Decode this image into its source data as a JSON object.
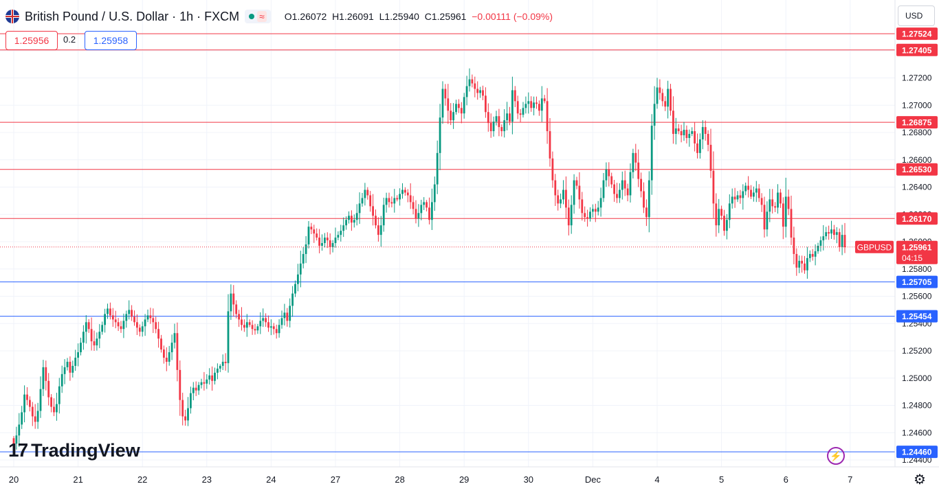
{
  "header": {
    "title": "British Pound / U.S. Dollar · 1h · FXCM",
    "open": "O1.26072",
    "high": "H1.26091",
    "low": "L1.25940",
    "close": "C1.25961",
    "change": "−0.00111 (−0.09%)"
  },
  "quote": {
    "sell": "1.25956",
    "spread": "0.2",
    "buy": "1.25958"
  },
  "currency": "USD",
  "logo_text": "TradingView",
  "colors": {
    "up": "#089981",
    "down": "#f23645",
    "resistance": "#f23645",
    "support": "#2962ff",
    "text": "#131722"
  },
  "chart_data": {
    "type": "candlestick",
    "symbol": "GBPUSD",
    "ylim": [
      1.2435,
      1.2757
    ],
    "y_ticks": [
      "1.24400",
      "1.24600",
      "1.24800",
      "1.25000",
      "1.25200",
      "1.25400",
      "1.25600",
      "1.25800",
      "1.26000",
      "1.26200",
      "1.26400",
      "1.26600",
      "1.26800",
      "1.27000",
      "1.27200",
      "1.27400"
    ],
    "x_ticks": [
      {
        "label": "20",
        "bar": 0
      },
      {
        "label": "21",
        "bar": 24
      },
      {
        "label": "22",
        "bar": 48
      },
      {
        "label": "23",
        "bar": 72
      },
      {
        "label": "24",
        "bar": 96
      },
      {
        "label": "27",
        "bar": 120
      },
      {
        "label": "28",
        "bar": 144
      },
      {
        "label": "29",
        "bar": 168
      },
      {
        "label": "30",
        "bar": 192
      },
      {
        "label": "Dec",
        "bar": 216
      },
      {
        "label": "4",
        "bar": 240
      },
      {
        "label": "5",
        "bar": 264
      },
      {
        "label": "6",
        "bar": 288
      },
      {
        "label": "7",
        "bar": 312
      }
    ],
    "horizontal_levels": [
      {
        "value": 1.27524,
        "label": "1.27524",
        "kind": "resistance"
      },
      {
        "value": 1.27405,
        "label": "1.27405",
        "kind": "resistance"
      },
      {
        "value": 1.26875,
        "label": "1.26875",
        "kind": "resistance"
      },
      {
        "value": 1.2653,
        "label": "1.26530",
        "kind": "resistance"
      },
      {
        "value": 1.2617,
        "label": "1.26170",
        "kind": "resistance"
      },
      {
        "value": 1.25705,
        "label": "1.25705",
        "kind": "support"
      },
      {
        "value": 1.25454,
        "label": "1.25454",
        "kind": "support"
      },
      {
        "value": 1.2446,
        "label": "1.24460",
        "kind": "support"
      }
    ],
    "current_price": {
      "value": 1.25961,
      "label": "1.25961",
      "countdown": "04:15",
      "symbol_label": "GBPUSD"
    },
    "closes": [
      1.2452,
      1.2458,
      1.2466,
      1.2475,
      1.2488,
      1.2484,
      1.2479,
      1.2472,
      1.2468,
      1.2476,
      1.2492,
      1.2508,
      1.2498,
      1.2486,
      1.2479,
      1.2475,
      1.2481,
      1.2494,
      1.2503,
      1.2508,
      1.2512,
      1.2504,
      1.2509,
      1.2515,
      1.2519,
      1.2526,
      1.2534,
      1.2541,
      1.2536,
      1.2527,
      1.2524,
      1.2529,
      1.2534,
      1.2539,
      1.2547,
      1.2551,
      1.2546,
      1.2543,
      1.2541,
      1.2538,
      1.2536,
      1.2542,
      1.2547,
      1.255,
      1.2545,
      1.2541,
      1.2537,
      1.2534,
      1.2538,
      1.2543,
      1.2546,
      1.2544,
      1.2541,
      1.2536,
      1.2529,
      1.2521,
      1.2515,
      1.2512,
      1.2519,
      1.2526,
      1.2533,
      1.2506,
      1.2484,
      1.2472,
      1.2469,
      1.2478,
      1.2489,
      1.2493,
      1.2491,
      1.2495,
      1.2497,
      1.2496,
      1.2499,
      1.2502,
      1.2498,
      1.2504,
      1.2507,
      1.2509,
      1.2512,
      1.2511,
      1.2549,
      1.2562,
      1.2554,
      1.2547,
      1.2543,
      1.2539,
      1.2537,
      1.2541,
      1.2539,
      1.2536,
      1.2535,
      1.2538,
      1.2542,
      1.2544,
      1.2541,
      1.2537,
      1.2538,
      1.2536,
      1.2533,
      1.2539,
      1.2544,
      1.2548,
      1.2542,
      1.2553,
      1.2562,
      1.2569,
      1.2576,
      1.2584,
      1.2591,
      1.2598,
      1.2611,
      1.2609,
      1.2606,
      1.2603,
      1.2597,
      1.2599,
      1.2603,
      1.2601,
      1.2596,
      1.2599,
      1.2603,
      1.2605,
      1.2608,
      1.2612,
      1.2616,
      1.2619,
      1.2614,
      1.2616,
      1.2621,
      1.2628,
      1.2632,
      1.2638,
      1.2634,
      1.2626,
      1.2619,
      1.2612,
      1.2605,
      1.2612,
      1.2627,
      1.2632,
      1.2629,
      1.2628,
      1.2632,
      1.2631,
      1.2635,
      1.2638,
      1.2636,
      1.2634,
      1.2629,
      1.2624,
      1.2617,
      1.2621,
      1.2627,
      1.2629,
      1.2625,
      1.2616,
      1.2629,
      1.2642,
      1.2665,
      1.2691,
      1.2712,
      1.2705,
      1.2696,
      1.2689,
      1.2695,
      1.2701,
      1.2698,
      1.2694,
      1.2706,
      1.2714,
      1.2719,
      1.2716,
      1.2712,
      1.2709,
      1.2711,
      1.2707,
      1.2695,
      1.2687,
      1.2681,
      1.2688,
      1.2692,
      1.2684,
      1.2681,
      1.2689,
      1.2694,
      1.2688,
      1.2711,
      1.2703,
      1.2694,
      1.2693,
      1.2698,
      1.2701,
      1.2703,
      1.2698,
      1.2702,
      1.2701,
      1.2696,
      1.2705,
      1.2703,
      1.2681,
      1.2661,
      1.2645,
      1.2634,
      1.2628,
      1.2631,
      1.2638,
      1.2625,
      1.2612,
      1.2627,
      1.2645,
      1.2641,
      1.2631,
      1.2621,
      1.2618,
      1.2617,
      1.2622,
      1.2624,
      1.2622,
      1.2625,
      1.2632,
      1.2645,
      1.2653,
      1.2648,
      1.2642,
      1.2635,
      1.2632,
      1.2638,
      1.2645,
      1.2639,
      1.2634,
      1.2651,
      1.2665,
      1.2658,
      1.2646,
      1.2637,
      1.2625,
      1.2618,
      1.2645,
      1.2685,
      1.2701,
      1.2713,
      1.2709,
      1.2703,
      1.2699,
      1.2712,
      1.2696,
      1.2679,
      1.2683,
      1.2681,
      1.2678,
      1.2682,
      1.2676,
      1.2679,
      1.2681,
      1.2672,
      1.2665,
      1.2675,
      1.2684,
      1.2679,
      1.2671,
      1.2652,
      1.2628,
      1.2612,
      1.2624,
      1.2619,
      1.2608,
      1.2616,
      1.2628,
      1.2633,
      1.2631,
      1.2634,
      1.2632,
      1.2637,
      1.2641,
      1.2638,
      1.2633,
      1.2636,
      1.2639,
      1.2632,
      1.2627,
      1.2609,
      1.2622,
      1.2631,
      1.2626,
      1.2625,
      1.2636,
      1.2628,
      1.2611,
      1.2633,
      1.2624,
      1.2603,
      1.2591,
      1.2581,
      1.2586,
      1.2584,
      1.2579,
      1.2588,
      1.2591,
      1.2589,
      1.2593,
      1.2597,
      1.2601,
      1.2604,
      1.2607,
      1.2606,
      1.2609,
      1.2605,
      1.2607,
      1.2596,
      1.2605,
      1.2596
    ]
  }
}
